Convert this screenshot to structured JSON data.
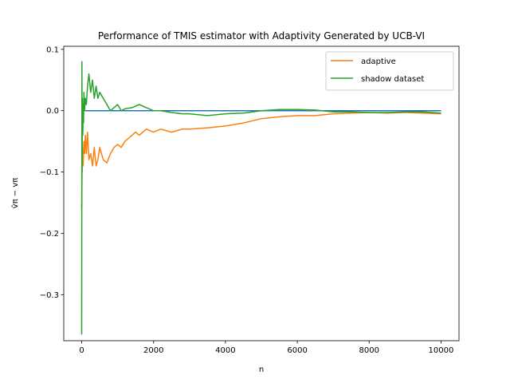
{
  "chart_data": {
    "type": "line",
    "title": "Performance of TMIS estimator with Adaptivity Generated by UCB-VI",
    "xlabel": "n",
    "ylabel": "v̂π − vπ",
    "xlim": [
      -500,
      10500
    ],
    "ylim": [
      -0.375,
      0.105
    ],
    "xticks": [
      0,
      2000,
      4000,
      6000,
      8000,
      10000
    ],
    "xtick_labels": [
      "0",
      "2000",
      "4000",
      "6000",
      "8000",
      "10000"
    ],
    "yticks": [
      -0.3,
      -0.2,
      -0.1,
      0.0,
      0.1
    ],
    "ytick_labels": [
      "−0.3",
      "−0.2",
      "−0.1",
      "0.0",
      "0.1"
    ],
    "grid": false,
    "legend_position": "top-right",
    "series": [
      {
        "name": "",
        "color": "#1f77b4",
        "legend": false,
        "x": [
          0,
          10000
        ],
        "y": [
          0.0,
          0.0
        ]
      },
      {
        "name": "adaptive",
        "color": "#ff7f0e",
        "legend": true,
        "x": [
          0,
          10,
          20,
          40,
          60,
          80,
          100,
          130,
          160,
          200,
          250,
          300,
          350,
          400,
          450,
          500,
          600,
          700,
          800,
          900,
          1000,
          1100,
          1200,
          1300,
          1400,
          1500,
          1600,
          1800,
          2000,
          2200,
          2500,
          2800,
          3000,
          3500,
          4000,
          4500,
          5000,
          5500,
          6000,
          6500,
          7000,
          7500,
          8000,
          8500,
          9000,
          9500,
          10000
        ],
        "y": [
          -0.16,
          -0.1,
          -0.06,
          -0.09,
          -0.05,
          -0.07,
          -0.04,
          -0.07,
          -0.035,
          -0.08,
          -0.07,
          -0.09,
          -0.06,
          -0.09,
          -0.08,
          -0.06,
          -0.08,
          -0.085,
          -0.07,
          -0.06,
          -0.055,
          -0.06,
          -0.05,
          -0.045,
          -0.04,
          -0.035,
          -0.04,
          -0.03,
          -0.035,
          -0.03,
          -0.035,
          -0.03,
          -0.03,
          -0.028,
          -0.025,
          -0.02,
          -0.013,
          -0.01,
          -0.008,
          -0.008,
          -0.005,
          -0.004,
          -0.003,
          -0.004,
          -0.003,
          -0.004,
          -0.005
        ]
      },
      {
        "name": "shadow dataset",
        "color": "#2ca02c",
        "legend": true,
        "x": [
          0,
          5,
          10,
          20,
          30,
          40,
          50,
          60,
          80,
          100,
          130,
          160,
          200,
          250,
          300,
          350,
          400,
          450,
          500,
          600,
          700,
          800,
          900,
          1000,
          1100,
          1200,
          1400,
          1600,
          1800,
          2000,
          2200,
          2500,
          2800,
          3000,
          3500,
          4000,
          4500,
          5000,
          5500,
          6000,
          6500,
          7000,
          7500,
          8000,
          8500,
          9000,
          9500,
          10000
        ],
        "y": [
          -0.365,
          0.08,
          -0.1,
          0.02,
          -0.04,
          0.01,
          -0.02,
          0.03,
          0.0,
          0.02,
          0.01,
          0.04,
          0.06,
          0.03,
          0.05,
          0.02,
          0.04,
          0.02,
          0.03,
          0.02,
          0.01,
          0.0,
          0.005,
          0.01,
          0.0,
          0.003,
          0.005,
          0.01,
          0.005,
          0.0,
          0.0,
          -0.003,
          -0.005,
          -0.005,
          -0.008,
          -0.005,
          -0.004,
          0.0,
          0.002,
          0.002,
          0.001,
          -0.002,
          -0.002,
          -0.003,
          -0.003,
          -0.002,
          -0.002,
          -0.004
        ]
      }
    ]
  }
}
